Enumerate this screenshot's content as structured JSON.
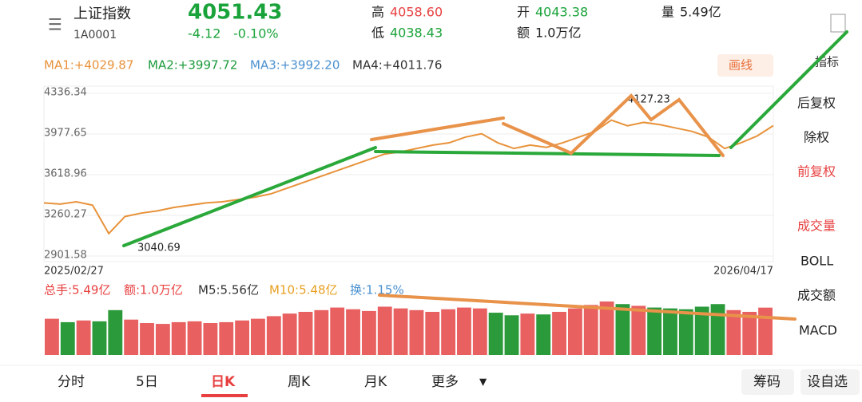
{
  "header": {
    "name": "上证指数",
    "code": "1A0001",
    "price": "4051.43",
    "change": "-4.12",
    "change_pct": "-0.10%",
    "high_label": "高",
    "high": "4058.60",
    "low_label": "低",
    "low": "4038.43",
    "open_label": "开",
    "open": "4043.38",
    "amount_label": "额",
    "amount": "1.0万亿",
    "volume_label": "量",
    "volume": "5.49亿"
  },
  "ma": [
    "MA1:+4029.87",
    "MA2:+3997.72",
    "MA3:+3992.20",
    "MA4:+4011.76"
  ],
  "draw_button": "画线",
  "indicator_button": "指标",
  "chart_data": {
    "type": "line",
    "color": "#e8923a",
    "ylim": [
      2901.58,
      4336.34
    ],
    "yticks": [
      2901.58,
      3260.27,
      3618.96,
      3977.65,
      4336.34
    ],
    "x_start": "2025/02/27",
    "x_end": "2026/04/17",
    "annotations": [
      "4127.23",
      "3040.69"
    ],
    "values": [
      3370,
      3360,
      3380,
      3350,
      3100,
      3250,
      3280,
      3300,
      3330,
      3350,
      3370,
      3380,
      3400,
      3420,
      3450,
      3500,
      3550,
      3600,
      3650,
      3700,
      3750,
      3800,
      3820,
      3850,
      3880,
      3900,
      3950,
      3980,
      3900,
      3850,
      3880,
      3860,
      3900,
      3950,
      4000,
      4100,
      4050,
      4080,
      4060,
      4030,
      4000,
      3950,
      3850,
      3900,
      3960,
      4051.43
    ]
  },
  "volume_chart": {
    "type": "bar",
    "labels": [
      "总手:5.49亿",
      "额:1.0万亿",
      "M5:5.56亿",
      "M10:5.48亿",
      "换:1.15%"
    ],
    "values": [
      4.2,
      3.8,
      4.0,
      3.9,
      5.2,
      4.1,
      3.7,
      3.6,
      3.8,
      3.9,
      3.7,
      3.8,
      4.0,
      4.2,
      4.5,
      4.8,
      5.0,
      5.2,
      5.5,
      5.3,
      5.1,
      5.6,
      5.4,
      5.2,
      5.0,
      5.3,
      5.5,
      5.4,
      4.9,
      4.6,
      4.8,
      4.7,
      5.0,
      5.4,
      5.8,
      6.2,
      5.9,
      5.7,
      5.5,
      5.4,
      5.3,
      5.6,
      5.9,
      5.2,
      5.0,
      5.49
    ]
  },
  "sidebar": [
    "后复权",
    "除权",
    "前复权",
    "成交量",
    "BOLL",
    "成交额",
    "MACD"
  ],
  "tabs": [
    "分时",
    "5日",
    "日K",
    "周K",
    "月K",
    "更多"
  ],
  "buttons": [
    "筹码",
    "设自选"
  ]
}
